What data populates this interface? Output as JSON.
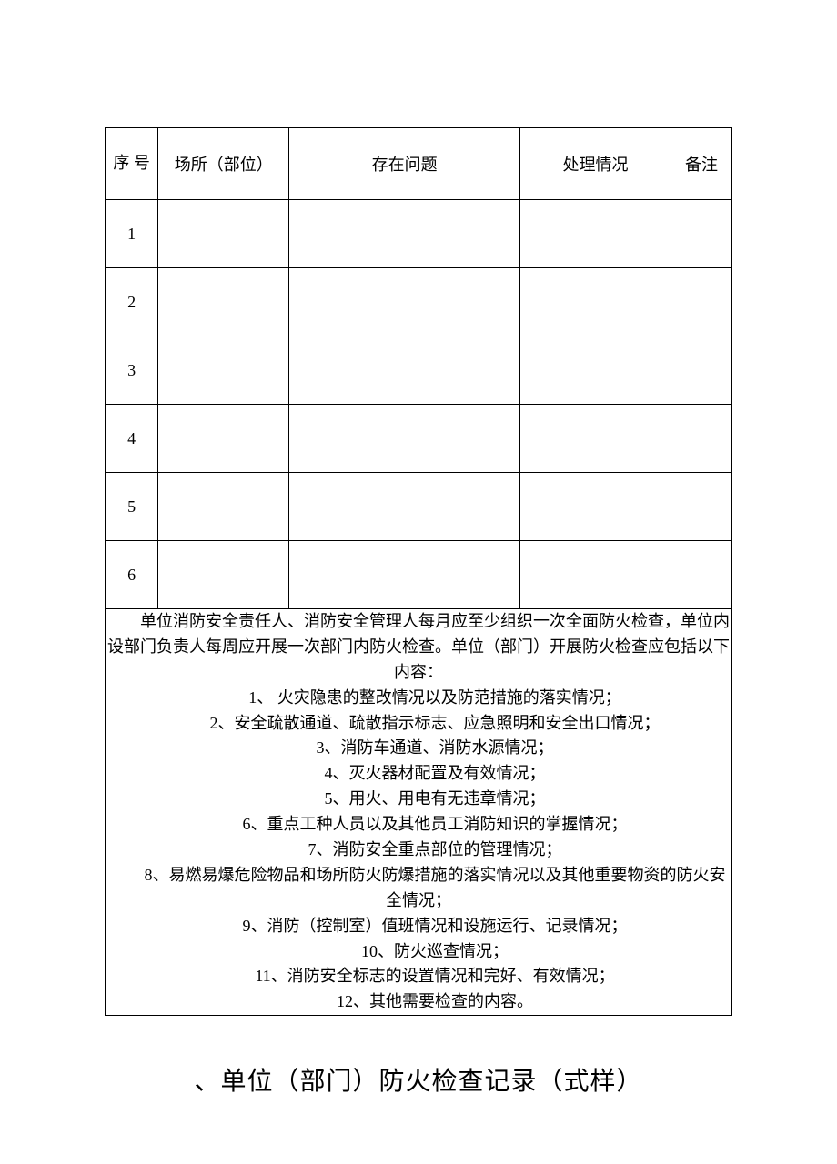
{
  "table": {
    "headers": {
      "seq": "序  号",
      "place": "场所（部位）",
      "issue": "存在问题",
      "handle": "处理情况",
      "note": "备注"
    },
    "rows": [
      {
        "seq": "1",
        "place": "",
        "issue": "",
        "handle": "",
        "note": ""
      },
      {
        "seq": "2",
        "place": "",
        "issue": "",
        "handle": "",
        "note": ""
      },
      {
        "seq": "3",
        "place": "",
        "issue": "",
        "handle": "",
        "note": ""
      },
      {
        "seq": "4",
        "place": "",
        "issue": "",
        "handle": "",
        "note": ""
      },
      {
        "seq": "5",
        "place": "",
        "issue": "",
        "handle": "",
        "note": ""
      },
      {
        "seq": "6",
        "place": "",
        "issue": "",
        "handle": "",
        "note": ""
      }
    ]
  },
  "notes": {
    "intro": "单位消防安全责任人、消防安全管理人每月应至少组织一次全面防火检查，单位内设部门负责人每周应开展一次部门内防火检查。单位（部门）开展防火检查应包括以下内容：",
    "items": [
      "1、   火灾隐患的整改情况以及防范措施的落实情况；",
      "2、安全疏散通道、疏散指示标志、应急照明和安全出口情况；",
      "3、消防车通道、消防水源情况；",
      "4、灭火器材配置及有效情况；",
      "5、用火、用电有无违章情况；",
      "6、重点工种人员以及其他员工消防知识的掌握情况；",
      "7、消防安全重点部位的管理情况；"
    ],
    "item8": "8、易燃易爆危险物品和场所防火防爆措施的落实情况以及其他重要物资的防火安全情况；",
    "items_after": [
      "9、消防（控制室）值班情况和设施运行、记录情况；",
      "10、防火巡查情况；",
      "11、消防安全标志的设置情况和完好、有效情况；",
      "12、其他需要检查的内容。"
    ]
  },
  "footer_title": "、单位（部门）防火检查记录（式样）"
}
